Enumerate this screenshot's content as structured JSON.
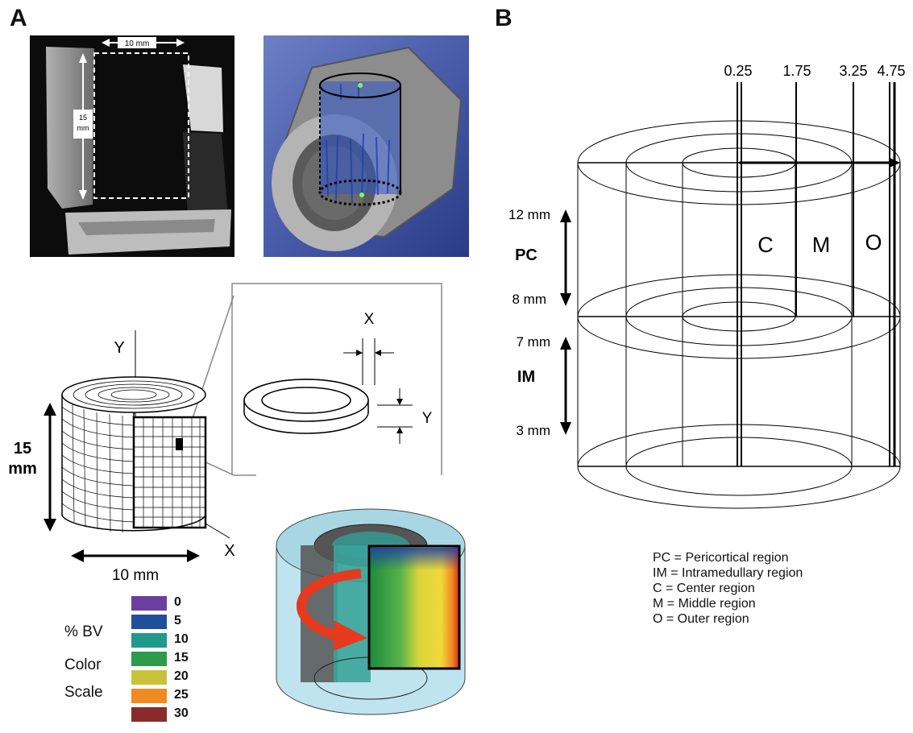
{
  "panelA": {
    "letter": "A",
    "xray": {
      "width_label": "10 mm",
      "height_label_line1": "15",
      "height_label_line2": "mm"
    },
    "schematic": {
      "axis_y": "Y",
      "axis_x": "X",
      "height_label_line1": "15",
      "height_label_line2": "mm",
      "width_label": "10 mm",
      "ring_dim_x": "X",
      "ring_dim_y": "Y"
    },
    "color_scale": {
      "label_line1": "% BV",
      "label_line2": "Color",
      "label_line3": "Scale",
      "entries": [
        {
          "value": "0",
          "color": "#6a3fa0"
        },
        {
          "value": "5",
          "color": "#1f4f9a"
        },
        {
          "value": "10",
          "color": "#1f9a8c"
        },
        {
          "value": "15",
          "color": "#2e9a4a"
        },
        {
          "value": "20",
          "color": "#c8c23a"
        },
        {
          "value": "25",
          "color": "#f08a22"
        },
        {
          "value": "30",
          "color": "#8a2a2a"
        }
      ]
    }
  },
  "panelB": {
    "letter": "B",
    "top_ticks": [
      "0.25",
      "1.75",
      "3.25",
      "4.75"
    ],
    "side_labels": [
      "12 mm",
      "8 mm",
      "7 mm",
      "3 mm"
    ],
    "zone_pc": "PC",
    "zone_im": "IM",
    "regions": [
      "C",
      "M",
      "O"
    ],
    "legend": [
      "PC = Pericortical region",
      "IM = Intramedullary region",
      "C = Center region",
      "M = Middle region",
      "O = Outer region"
    ]
  }
}
